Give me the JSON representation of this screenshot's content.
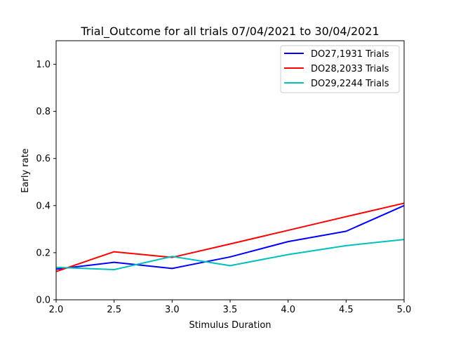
{
  "chart_data": {
    "type": "line",
    "title": "Trial_Outcome for all trials 07/04/2021 to 30/04/2021",
    "xlabel": "Stimulus Duration",
    "ylabel": "Early rate",
    "xlim": [
      2.0,
      5.0
    ],
    "ylim": [
      0.0,
      1.1
    ],
    "xticks": [
      "2.0",
      "2.5",
      "3.0",
      "3.5",
      "4.0",
      "4.5",
      "5.0"
    ],
    "yticks": [
      "0.0",
      "0.2",
      "0.4",
      "0.6",
      "0.8",
      "1.0"
    ],
    "grid": false,
    "legend_position": "top-right",
    "x": [
      2.0,
      2.5,
      3.0,
      3.5,
      4.0,
      4.5,
      5.0
    ],
    "series": [
      {
        "name": "DO27,1931 Trials",
        "color": "#0000ff",
        "values": [
          0.13,
          0.159,
          0.133,
          0.182,
          0.247,
          0.291,
          0.4
        ]
      },
      {
        "name": "DO28,2033 Trials",
        "color": "#ff0000",
        "values": [
          0.12,
          0.204,
          0.18,
          0.237,
          0.295,
          0.353,
          0.41
        ]
      },
      {
        "name": "DO29,2244 Trials",
        "color": "#00bfbf",
        "values": [
          0.138,
          0.128,
          0.184,
          0.145,
          0.192,
          0.23,
          0.256
        ]
      }
    ]
  }
}
